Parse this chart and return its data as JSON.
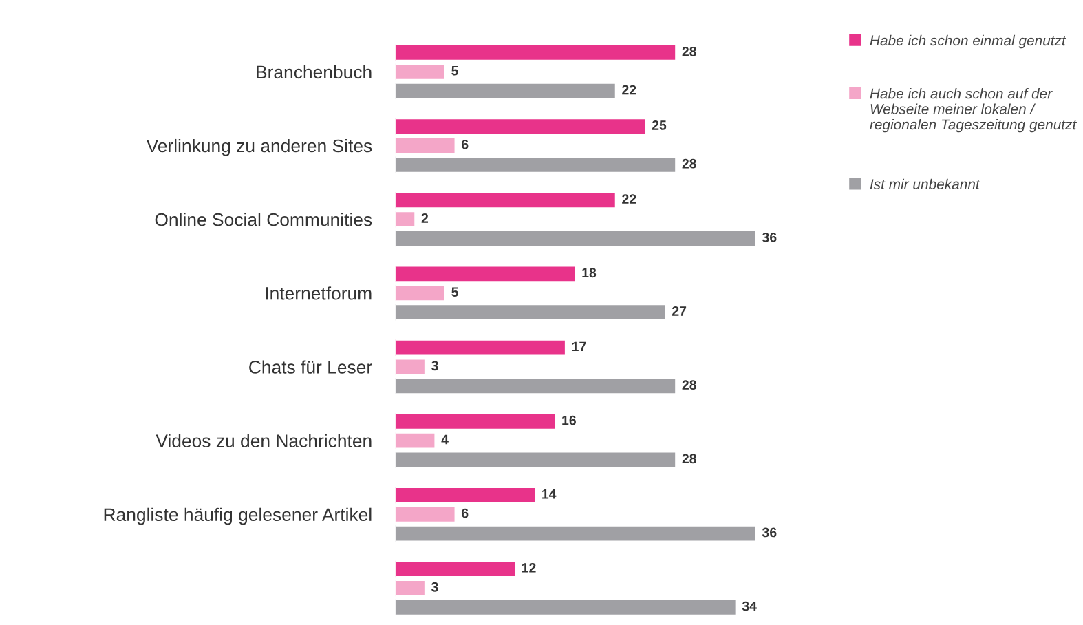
{
  "chart_data": {
    "type": "bar",
    "orientation": "horizontal",
    "categories": [
      "Branchenbuch",
      "Verlinkung zu anderen Sites",
      "Online Social Communities",
      "Internetforum",
      "Chats für Leser",
      "Videos zu den Nachrichten",
      "Rangliste häufig gelesener Artikel",
      null
    ],
    "series": [
      {
        "name": "Habe ich schon einmal genutzt",
        "color": "#e8338a",
        "values": [
          28,
          25,
          22,
          18,
          17,
          16,
          14,
          12
        ]
      },
      {
        "name": "Habe ich auch schon auf der Webseite meiner lokalen / regionalen Tageszeitung genutzt",
        "color": "#f4a6c8",
        "values": [
          5,
          6,
          2,
          5,
          3,
          4,
          6,
          3
        ]
      },
      {
        "name": "Ist mir unbekannt",
        "color": "#a0a0a4",
        "values": [
          22,
          28,
          36,
          27,
          28,
          28,
          36,
          34
        ]
      }
    ],
    "data_labels": true,
    "legend": "top right"
  }
}
